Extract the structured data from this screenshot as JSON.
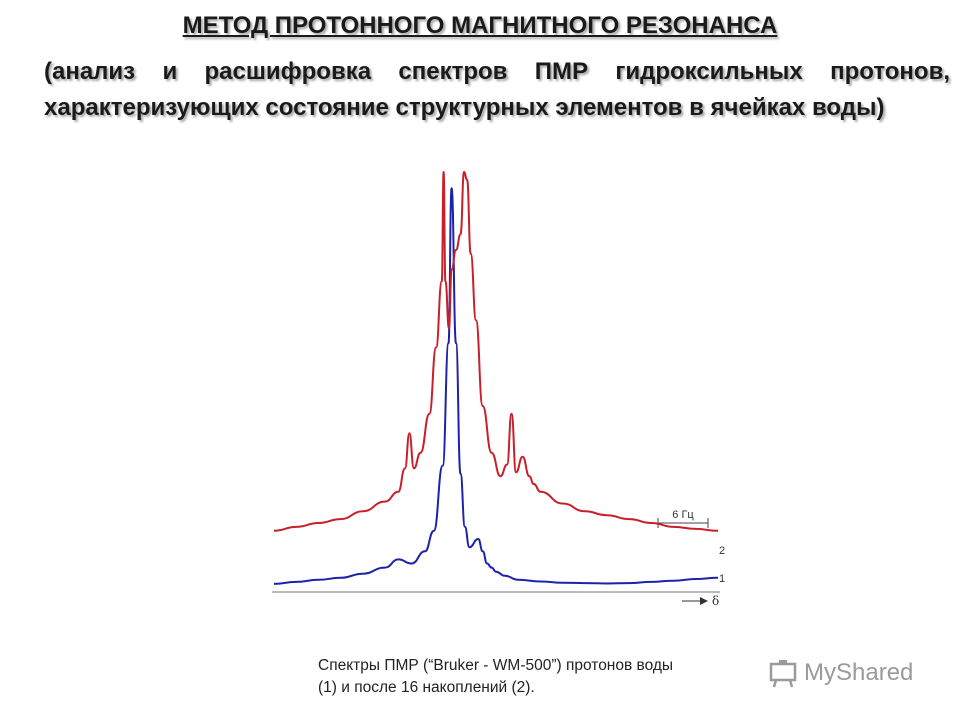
{
  "title": "МЕТОД ПРОТОННОГО МАГНИТНОГО РЕЗОНАНСА",
  "subtitle": "(анализ и расшифровка спектров ПМР гидроксильных протонов, характеризующих состояние структурных элементов в ячейках воды)",
  "caption_line1": "Спектры ПМР (“Bruker - WM-500”) протонов воды",
  "caption_line2": "(1) и после 16 накоплений (2).",
  "watermark_text": "MyShared",
  "chart_data": {
    "type": "line",
    "title": "",
    "xlabel": "δ",
    "ylabel": "",
    "scale_bar_label": "6 Гц",
    "axis_direction": "right",
    "colors": {
      "series_1": "#1c23a8",
      "series_2": "#c8202a"
    },
    "series": [
      {
        "name": "1",
        "x": [
          0,
          5,
          10,
          15,
          20,
          25,
          28,
          31,
          34,
          36,
          38,
          39.3,
          40,
          41,
          42,
          43,
          44,
          46,
          47,
          48,
          49,
          50,
          52,
          55,
          60,
          65,
          70,
          75,
          80,
          85,
          90,
          95,
          100
        ],
        "y": [
          1,
          1.5,
          2,
          2.5,
          3.5,
          5,
          7,
          6,
          9,
          14,
          30,
          60,
          98,
          60,
          28,
          15,
          10,
          12,
          9,
          6,
          5,
          4,
          3,
          2,
          1.6,
          1.3,
          1.2,
          1.1,
          1.2,
          1.5,
          1.8,
          2.2,
          2.5
        ]
      },
      {
        "name": "2",
        "x": [
          0,
          5,
          10,
          15,
          20,
          25,
          28,
          29.5,
          30.5,
          31.5,
          33,
          35,
          36.5,
          37.8,
          38.2,
          38.6,
          39.4,
          40,
          41,
          42,
          42.8,
          43.5,
          44.3,
          45.5,
          47,
          49,
          51,
          52.5,
          53.5,
          54.5,
          56,
          57.5,
          58.5,
          60,
          65,
          70,
          75,
          80,
          85,
          90,
          95,
          100
        ],
        "y": [
          8,
          9,
          10,
          11,
          13,
          15.5,
          18,
          24,
          33,
          24,
          28,
          38,
          55,
          72,
          100,
          72,
          60,
          75,
          80,
          84,
          100,
          98,
          79,
          62,
          40,
          28,
          22,
          25,
          38,
          23,
          27,
          22,
          20,
          18,
          15,
          13,
          12,
          11,
          10,
          9,
          8.5,
          8
        ]
      }
    ],
    "x_range": [
      0,
      100
    ],
    "grid": false,
    "legend": "inline labels at right"
  }
}
